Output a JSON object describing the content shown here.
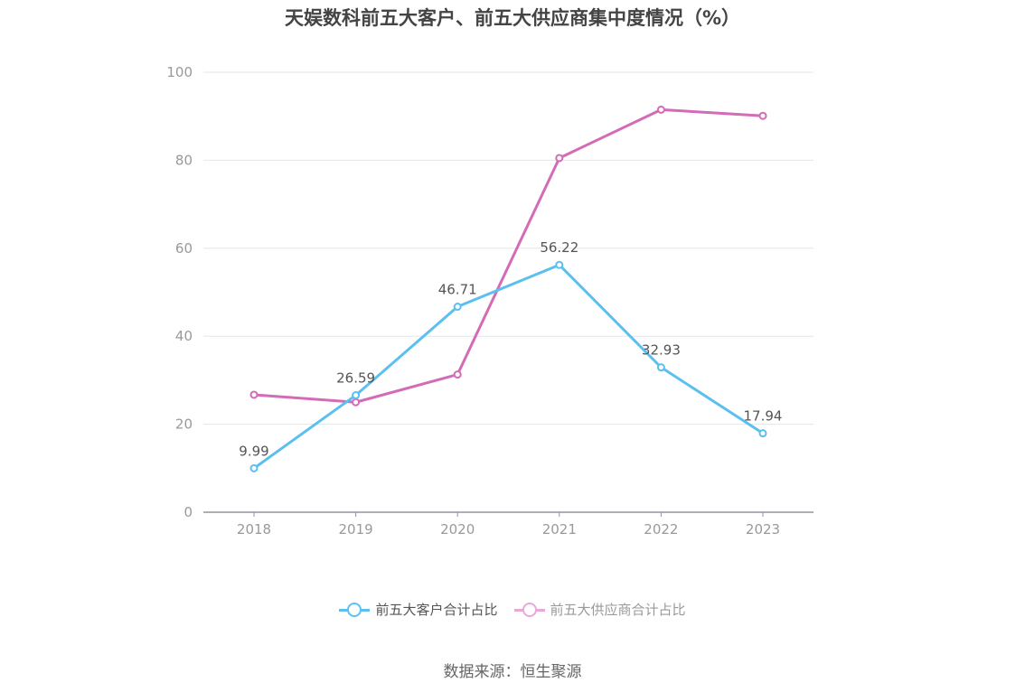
{
  "chart_data": {
    "type": "line",
    "title": "天娱数科前五大客户、前五大供应商集中度情况（%）",
    "categories": [
      "2018",
      "2019",
      "2020",
      "2021",
      "2022",
      "2023"
    ],
    "ylim": [
      0,
      100
    ],
    "yticks": [
      "0",
      "20",
      "40",
      "60",
      "80",
      "100"
    ],
    "grid": true,
    "legend_position": "bottom",
    "series": [
      {
        "name": "前五大客户合计占比",
        "color": "#5bc0f0",
        "values": [
          9.99,
          26.59,
          46.71,
          56.22,
          32.93,
          17.94
        ],
        "labels": [
          "9.99",
          "26.59",
          "46.71",
          "56.22",
          "32.93",
          "17.94"
        ]
      },
      {
        "name": "前五大供应商合计占比",
        "color": "#d36bb6",
        "legend_color": "#e8a8d8",
        "values": [
          26.7,
          25.0,
          31.3,
          80.5,
          91.5,
          90.1
        ],
        "labels": []
      }
    ]
  },
  "source": "数据来源：恒生聚源"
}
